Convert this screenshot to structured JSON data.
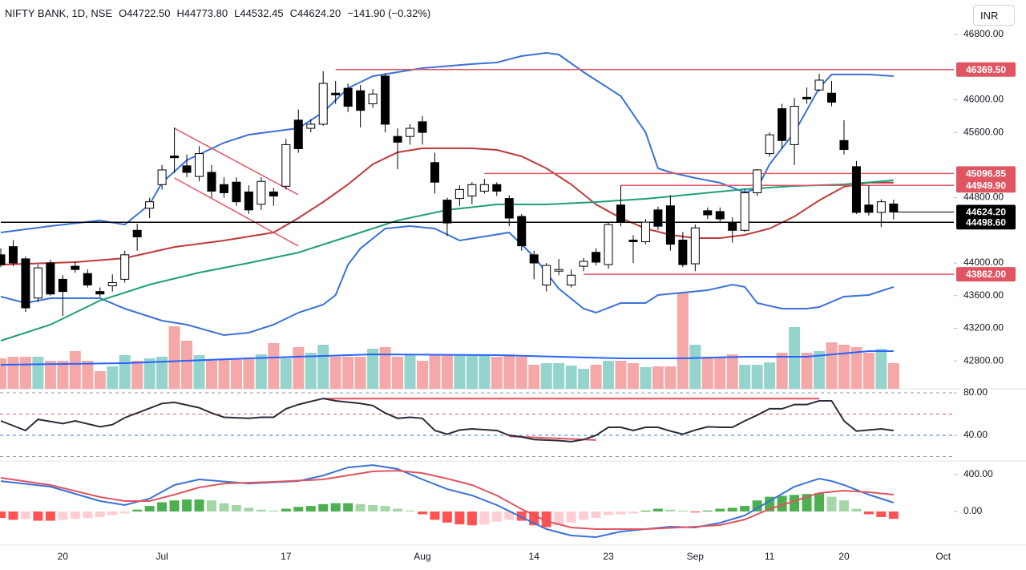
{
  "chart_data": {
    "type": "candlestick",
    "title": "NIFTY BANK, 1D, NSE",
    "legend_values": [
      "O44722.50",
      "H44773.80",
      "L44532.45",
      "C44624.20",
      "−141.90 (−0.32%)"
    ],
    "currency": "INR",
    "categories": [
      null,
      null,
      null,
      null,
      null,
      "20",
      null,
      null,
      null,
      null,
      null,
      null,
      null,
      "Jul",
      null,
      null,
      null,
      null,
      null,
      null,
      null,
      null,
      null,
      "17",
      null,
      null,
      null,
      null,
      null,
      null,
      null,
      null,
      null,
      null,
      "Aug",
      null,
      null,
      null,
      null,
      null,
      null,
      null,
      null,
      "14",
      null,
      null,
      null,
      null,
      null,
      "23",
      null,
      null,
      null,
      null,
      null,
      null,
      "Sep",
      null,
      null,
      null,
      null,
      null,
      "11",
      null,
      null,
      null,
      null,
      null,
      "20",
      null,
      null,
      null,
      null,
      null,
      null,
      null,
      "Oct"
    ],
    "open": [
      44100,
      44200,
      44050,
      43570,
      44000,
      43800,
      43960,
      43870,
      43650,
      43720,
      43800,
      44400,
      44670,
      44960,
      45310,
      45190,
      45060,
      45110,
      44960,
      44990,
      44870,
      44720,
      44870,
      44940,
      45750,
      45650,
      45700,
      46080,
      46140,
      46110,
      45950,
      46290,
      45550,
      45550,
      45730,
      45230,
      44770,
      44790,
      44820,
      44880,
      44960,
      44790,
      44570,
      44100,
      43730,
      43900,
      43730,
      43960,
      44130,
      43980,
      44710,
      44280,
      44260,
      44650,
      44700,
      44280,
      43990,
      44640,
      44630,
      44500,
      44400,
      44860,
      45340,
      45890,
      45450,
      46030,
      46120,
      46080,
      45500,
      45180,
      44710,
      44620,
      44722.5,
      null,
      null,
      null,
      null
    ],
    "high": [
      44180,
      44280,
      44080,
      43980,
      44040,
      43850,
      44020,
      43920,
      43700,
      43860,
      44150,
      44480,
      44800,
      45200,
      45660,
      45330,
      45430,
      45200,
      45050,
      45050,
      44950,
      45050,
      44920,
      45520,
      45880,
      45760,
      46350,
      46230,
      46200,
      46180,
      46130,
      46320,
      45650,
      45700,
      45800,
      45350,
      44800,
      44950,
      44990,
      45030,
      44990,
      44830,
      44600,
      44150,
      44000,
      44050,
      43920,
      44060,
      44180,
      44500,
      44950,
      44340,
      44540,
      44690,
      44830,
      44380,
      44470,
      44680,
      44680,
      44560,
      44900,
      45150,
      45600,
      45950,
      46020,
      46150,
      46320,
      46230,
      45750,
      45250,
      44950,
      44780,
      44773.8,
      null,
      null,
      null,
      null
    ],
    "low": [
      43950,
      43960,
      43400,
      43520,
      43600,
      43350,
      43880,
      43700,
      43580,
      43650,
      43760,
      44150,
      44550,
      44900,
      45100,
      45050,
      45000,
      44800,
      44800,
      44700,
      44600,
      44650,
      44700,
      44900,
      45350,
      45600,
      45680,
      45950,
      45850,
      45660,
      45900,
      45600,
      45150,
      45450,
      45450,
      44850,
      44330,
      44700,
      44720,
      44850,
      44820,
      44450,
      44150,
      43800,
      43650,
      43850,
      43700,
      43900,
      43970,
      43930,
      44450,
      44000,
      44230,
      44400,
      44150,
      43950,
      43900,
      44540,
      44500,
      44250,
      44380,
      44820,
      45300,
      45400,
      45200,
      45950,
      46100,
      45920,
      45330,
      44600,
      44580,
      44440,
      44532.45,
      null,
      null,
      null,
      null
    ],
    "close": [
      43980,
      44000,
      43450,
      43940,
      43620,
      43650,
      43920,
      43730,
      43620,
      43760,
      44100,
      44320,
      44750,
      45140,
      45290,
      45110,
      45340,
      44880,
      44860,
      44750,
      44650,
      45000,
      44820,
      45450,
      45400,
      45700,
      46200,
      46060,
      45920,
      45870,
      46070,
      45700,
      45480,
      45650,
      45600,
      44990,
      44490,
      44900,
      44960,
      44960,
      44880,
      44550,
      44210,
      44000,
      43970,
      43920,
      43850,
      44020,
      44010,
      44470,
      44500,
      44260,
      44500,
      44450,
      44230,
      43980,
      44430,
      44590,
      44540,
      44400,
      44860,
      45140,
      45570,
      45500,
      45920,
      46010,
      46240,
      45970,
      45390,
      44620,
      44620,
      44750,
      44624.2,
      null,
      null,
      null,
      null
    ],
    "up_color": "#ffffff",
    "down_color": "#000000",
    "ylim": [
      42458,
      47222
    ],
    "yticks": [
      {
        "value": 46800,
        "label": "46800.00"
      },
      {
        "value": 46000,
        "label": "46000.00"
      },
      {
        "value": 45600,
        "label": "45600.00"
      },
      {
        "value": 44800,
        "label": "44800.00"
      },
      {
        "value": 44000,
        "label": "44000.00"
      },
      {
        "value": 43600,
        "label": "43600.00"
      },
      {
        "value": 43200,
        "label": "43200.00"
      },
      {
        "value": 42800,
        "label": "42800.00"
      }
    ],
    "overlays": [
      {
        "color": "#3a72d8",
        "x": [
          0,
          4,
          8,
          10,
          12,
          13,
          15,
          18,
          20,
          24,
          26,
          28,
          30,
          32,
          34,
          38,
          40,
          42,
          44,
          45,
          47,
          50,
          52,
          53,
          54,
          56,
          58,
          60,
          61,
          62,
          64,
          66,
          67,
          70,
          72
        ],
        "values": [
          44373,
          44452,
          44521,
          44470,
          44717,
          44983,
          45258,
          45474,
          45572,
          45651,
          45847,
          46142,
          46289,
          46338,
          46387,
          46437,
          46456,
          46535,
          46574,
          46554,
          46338,
          46044,
          45601,
          45159,
          45110,
          45041,
          44982,
          44864,
          44914,
          45209,
          45601,
          46142,
          46309,
          46309,
          46289
        ]
      },
      {
        "color": "#3a72d8",
        "x": [
          0,
          2,
          4,
          8,
          10,
          11,
          13,
          15,
          18,
          20,
          22,
          24,
          26,
          27,
          28,
          29,
          31,
          33,
          35,
          37,
          39,
          41,
          43,
          45,
          47,
          48,
          50,
          52,
          53,
          55,
          57,
          59,
          60,
          61,
          63,
          65,
          66,
          68,
          70,
          72
        ],
        "values": [
          43588,
          43509,
          43568,
          43568,
          43440,
          43391,
          43293,
          43244,
          43116,
          43146,
          43244,
          43391,
          43489,
          43607,
          43980,
          44177,
          44422,
          44452,
          44422,
          44275,
          44324,
          44373,
          44078,
          43686,
          43440,
          43391,
          43509,
          43509,
          43607,
          43637,
          43666,
          43735,
          43706,
          43509,
          43440,
          43440,
          43460,
          43588,
          43607,
          43706
        ]
      },
      {
        "color": "#c0393b",
        "x": [
          0,
          6,
          10,
          14,
          18,
          22,
          24,
          26,
          28,
          30,
          32,
          34,
          36,
          38,
          40,
          42,
          44,
          46,
          48,
          50,
          52,
          54,
          56,
          58,
          60,
          62,
          64,
          66,
          68,
          70,
          72
        ],
        "values": [
          43980,
          44010,
          44059,
          44196,
          44275,
          44373,
          44550,
          44747,
          44963,
          45209,
          45356,
          45405,
          45405,
          45405,
          45385,
          45307,
          45159,
          44963,
          44717,
          44550,
          44422,
          44344,
          44305,
          44305,
          44344,
          44422,
          44570,
          44766,
          44934,
          44983,
          44983
        ]
      },
      {
        "color": "#1f9e7a",
        "x": [
          0,
          4,
          8,
          12,
          16,
          20,
          24,
          28,
          32,
          36,
          40,
          44,
          48,
          52,
          56,
          60,
          64,
          68,
          72
        ],
        "values": [
          43047,
          43244,
          43539,
          43735,
          43882,
          44000,
          44128,
          44324,
          44521,
          44649,
          44717,
          44717,
          44747,
          44786,
          44845,
          44904,
          44943,
          44963,
          45012
        ]
      }
    ],
    "trendlines": [
      {
        "color": "#e05561",
        "x": [
          14,
          24
        ],
        "values": [
          45650,
          44835
        ]
      },
      {
        "color": "#e05561",
        "x": [
          14,
          24
        ],
        "values": [
          45041,
          44206
        ]
      }
    ],
    "levels": [
      {
        "value": 46369.5,
        "label": "46369.50",
        "from": 27,
        "color": "#e05561"
      },
      {
        "value": 45096.85,
        "label": "45096.85",
        "from": 39,
        "color": "#e05561"
      },
      {
        "value": 44949.9,
        "label": "44949.90",
        "from": 50,
        "color": "#e05561"
      },
      {
        "value": 44624.2,
        "label": "44624.20",
        "from": 72,
        "color": "#000000"
      },
      {
        "value": 44498.6,
        "label": "44498.60",
        "from": 0,
        "color": "#000000"
      },
      {
        "value": 43862,
        "label": "43862.00",
        "from": 47,
        "color": "#e05561"
      }
    ],
    "volume": {
      "values": [
        38,
        40,
        40,
        40,
        35,
        35,
        47,
        35,
        22,
        28,
        42,
        35,
        38,
        40,
        78,
        60,
        42,
        35,
        37,
        37,
        37,
        43,
        57,
        38,
        52,
        45,
        55,
        40,
        40,
        40,
        50,
        52,
        40,
        43,
        35,
        43,
        43,
        43,
        43,
        43,
        40,
        43,
        40,
        30,
        32,
        32,
        29,
        25,
        30,
        35,
        35,
        32,
        27,
        28,
        28,
        120,
        55,
        40,
        40,
        43,
        30,
        30,
        33,
        45,
        77,
        45,
        47,
        58,
        55,
        52,
        45,
        50,
        32,
        null,
        null,
        null,
        null
      ],
      "up_color": "#94d4cc",
      "down_color": "#f4a8a8",
      "ylim": [
        0,
        240
      ],
      "ma": {
        "color": "#2962ff",
        "x": [
          0,
          10,
          20,
          30,
          40,
          50,
          55,
          60,
          65,
          70,
          72
        ],
        "values": [
          30,
          32,
          38,
          43,
          42,
          38,
          38,
          40,
          40,
          47,
          47
        ]
      }
    },
    "rsi": {
      "ylim": [
        15.8,
        83.8
      ],
      "yticks": [
        {
          "value": 80,
          "label": "80.00"
        },
        {
          "value": 40,
          "label": "40.00"
        }
      ],
      "levels": [
        {
          "value": 80,
          "color": "#9598a1"
        },
        {
          "value": 60,
          "color": "#e05561"
        },
        {
          "value": 40,
          "color": "#3a72d8"
        },
        {
          "value": 20,
          "color": "#9598a1"
        }
      ],
      "line": {
        "color": "#2a2e39",
        "x": [
          0,
          2,
          3,
          5,
          6,
          8,
          9,
          10,
          11,
          13,
          14,
          16,
          17,
          18,
          20,
          21,
          22,
          23,
          24,
          26,
          27,
          29,
          30,
          31,
          32,
          33,
          34,
          35,
          36,
          37,
          38,
          40,
          41,
          42,
          43,
          45,
          46,
          47,
          48,
          49,
          50,
          51,
          52,
          53,
          54,
          55,
          56,
          57,
          58,
          59,
          60,
          61,
          62,
          63,
          64,
          65,
          66,
          67,
          68,
          69,
          70,
          71,
          72
        ],
        "values": [
          53.6,
          44.5,
          55,
          51,
          53.6,
          48,
          50,
          56.6,
          61,
          70,
          71,
          66,
          61,
          57,
          56,
          57,
          57,
          65,
          69,
          74.7,
          72.5,
          70,
          68,
          61,
          56,
          57,
          56,
          44.5,
          41,
          45,
          46,
          44.5,
          40,
          38.5,
          36,
          35,
          34,
          36,
          40,
          47.5,
          47.5,
          44.5,
          47.5,
          47.5,
          44,
          41,
          45,
          48,
          47.5,
          47.5,
          53.6,
          59,
          65,
          65,
          69,
          69,
          72.5,
          72.5,
          53.6,
          44,
          45,
          46,
          44.5
        ]
      },
      "divergences": [
        {
          "color": "#e05561",
          "x": [
            26,
            66
          ],
          "values": [
            74.5,
            74.5
          ]
        },
        {
          "color": "#e05561",
          "x": [
            41,
            48
          ],
          "values": [
            39,
            35.5
          ]
        }
      ]
    },
    "macd": {
      "ylim": [
        -365,
        548
      ],
      "yticks": [
        {
          "value": 400,
          "label": "400.00"
        },
        {
          "value": 0,
          "label": "0.00"
        }
      ],
      "histogram": [
        -70,
        -90,
        -80,
        -100,
        -100,
        -90,
        -80,
        -70,
        -60,
        -40,
        -20,
        20,
        60,
        100,
        120,
        130,
        130,
        120,
        90,
        70,
        40,
        20,
        10,
        30,
        50,
        60,
        80,
        90,
        90,
        80,
        70,
        60,
        30,
        10,
        -30,
        -90,
        -120,
        -140,
        -150,
        -140,
        -110,
        -90,
        -100,
        -150,
        -170,
        -150,
        -120,
        -90,
        -70,
        -40,
        -30,
        -20,
        10,
        30,
        20,
        10,
        -10,
        10,
        30,
        40,
        60,
        120,
        160,
        170,
        180,
        190,
        200,
        160,
        120,
        30,
        -30,
        -60,
        -80,
        null,
        null,
        null,
        null
      ],
      "macd": {
        "color": "#3a72d8",
        "x": [
          0,
          4,
          8,
          10,
          12,
          14,
          16,
          20,
          24,
          26,
          28,
          30,
          32,
          34,
          36,
          38,
          40,
          42,
          44,
          46,
          48,
          50,
          52,
          54,
          56,
          58,
          60,
          62,
          64,
          66,
          67,
          68,
          70,
          72
        ],
        "values": [
          330,
          270,
          113,
          70,
          139,
          287,
          348,
          304,
          330,
          391,
          478,
          504,
          461,
          348,
          243,
          174,
          70,
          -61,
          -191,
          -261,
          -278,
          -217,
          -191,
          -165,
          -174,
          -122,
          -43,
          113,
          270,
          357,
          330,
          287,
          183,
          96
        ]
      },
      "signal": {
        "color": "#e05561",
        "x": [
          0,
          4,
          8,
          10,
          12,
          14,
          16,
          18,
          22,
          26,
          30,
          32,
          34,
          36,
          38,
          40,
          42,
          44,
          46,
          48,
          50,
          52,
          56,
          58,
          60,
          62,
          64,
          66,
          68,
          70,
          72
        ],
        "values": [
          365,
          287,
          157,
          113,
          113,
          183,
          261,
          304,
          322,
          348,
          435,
          443,
          417,
          357,
          287,
          174,
          26,
          -104,
          -174,
          -191,
          -191,
          -191,
          -165,
          -148,
          -87,
          26,
          113,
          200,
          226,
          209,
          183
        ]
      }
    }
  }
}
